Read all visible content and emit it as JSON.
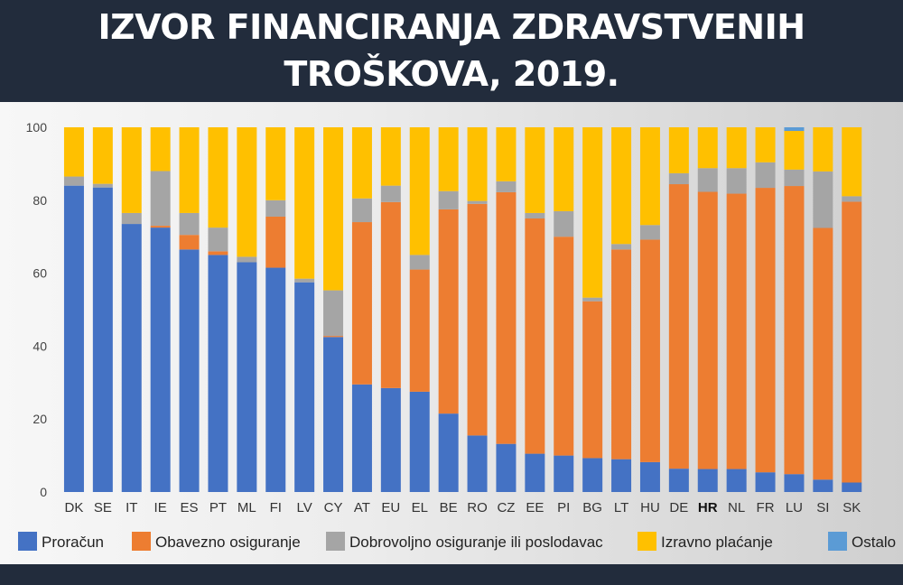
{
  "header": {
    "title_line1": "IZVOR FINANCIRANJA ZDRAVSTVENIH",
    "title_line2": "TROŠKOVA, 2019."
  },
  "chart_data": {
    "type": "bar",
    "stacked": true,
    "title": "IZVOR FINANCIRANJA ZDRAVSTVENIH TROŠKOVA, 2019.",
    "xlabel": "",
    "ylabel": "",
    "ylim": [
      0,
      100
    ],
    "yticks": [
      0,
      20,
      40,
      60,
      80,
      100
    ],
    "grid": false,
    "legend_position": "bottom",
    "highlight_category": "HR",
    "categories": [
      "DK",
      "SE",
      "IT",
      "IE",
      "ES",
      "PT",
      "ML",
      "FI",
      "LV",
      "CY",
      "AT",
      "EU",
      "EL",
      "BE",
      "RO",
      "CZ",
      "EE",
      "PI",
      "BG",
      "LT",
      "HU",
      "DE",
      "HR",
      "NL",
      "FR",
      "LU",
      "SI",
      "SK"
    ],
    "series": [
      {
        "name": "Proračun",
        "color": "#4472c4",
        "values": [
          84,
          83.5,
          73.5,
          72.5,
          66.5,
          65,
          63,
          61.5,
          57.5,
          42.5,
          29.5,
          28.5,
          27.5,
          21.5,
          15.5,
          13.2,
          10.5,
          10,
          9.3,
          9,
          8.2,
          6.4,
          6.3,
          6.3,
          5.4,
          4.9,
          3.4,
          2.6
        ]
      },
      {
        "name": "Obavezno osiguranje",
        "color": "#ed7d31",
        "values": [
          0,
          0,
          0,
          0.5,
          4,
          1,
          0,
          14,
          0,
          0.3,
          44.5,
          51,
          33.5,
          56,
          63.5,
          69,
          64.5,
          60,
          43,
          57.5,
          61,
          78,
          76,
          75.5,
          78,
          79,
          69,
          77
        ]
      },
      {
        "name": "Dobrovoljno osiguranje ili poslodavac",
        "color": "#a5a5a5",
        "values": [
          2.5,
          1,
          3,
          15,
          6,
          6.5,
          1.5,
          4.5,
          1,
          12.5,
          6.5,
          4.5,
          4,
          5,
          0.8,
          3,
          1.5,
          7,
          1,
          1.5,
          4,
          3,
          6.5,
          7,
          7,
          4.5,
          15.5,
          1.5
        ]
      },
      {
        "name": "Izravno plaćanje",
        "color": "#ffc000",
        "values": [
          13.5,
          15.5,
          23.5,
          12,
          23.5,
          27.5,
          35.5,
          20,
          41.5,
          44.7,
          19.5,
          16,
          35,
          17.5,
          20.2,
          14.8,
          23.5,
          23,
          46.7,
          32,
          26.8,
          12.6,
          11.2,
          11.2,
          9.6,
          10.6,
          12.1,
          18.9
        ]
      },
      {
        "name": "Ostalo",
        "color": "#5b9bd5",
        "values": [
          0,
          0,
          0,
          0,
          0,
          0,
          0,
          0,
          0,
          0,
          0,
          0,
          0,
          0,
          0,
          0,
          0,
          0,
          0,
          0,
          0,
          0,
          0,
          0,
          0,
          1,
          0,
          0
        ]
      }
    ]
  }
}
